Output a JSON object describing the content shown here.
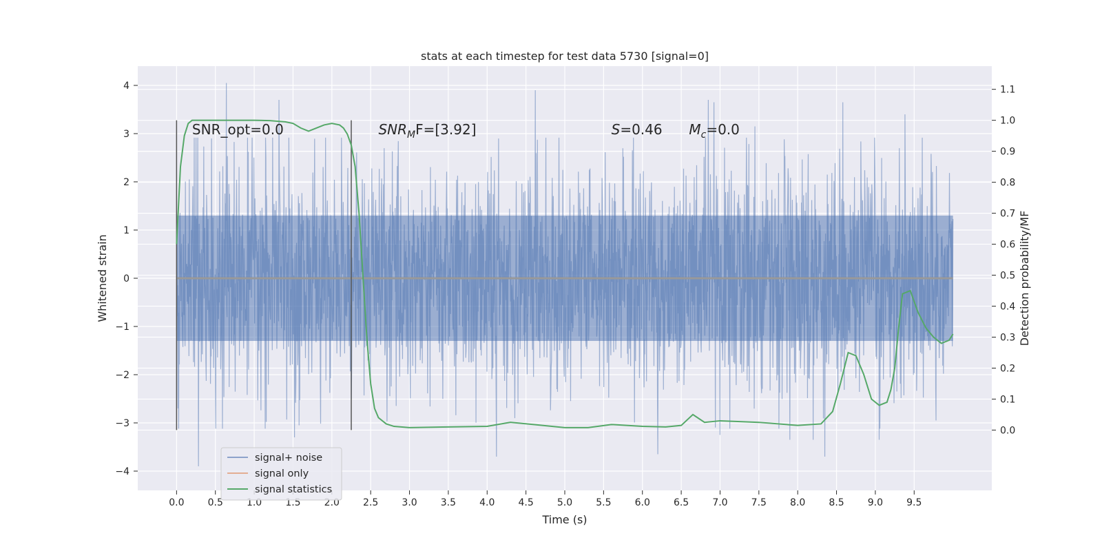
{
  "chart_data": {
    "type": "line",
    "title": "stats at each timestep for test data 5730 [signal=0]",
    "xlabel": "Time (s)",
    "ylabel_left": "Whitened strain",
    "ylabel_right": "Detection probability/MF",
    "xlim": [
      -0.5,
      10.5
    ],
    "ylim_left": [
      -4.4,
      4.4
    ],
    "ylim_right": [
      -0.1947,
      1.1749
    ],
    "x_ticks": [
      "0.0",
      "0.5",
      "1.0",
      "1.5",
      "2.0",
      "2.5",
      "3.0",
      "3.5",
      "4.0",
      "4.5",
      "5.0",
      "5.5",
      "6.0",
      "6.5",
      "7.0",
      "7.5",
      "8.0",
      "8.5",
      "9.0",
      "9.5"
    ],
    "y_left_ticks": [
      "4",
      "3",
      "2",
      "1",
      "0",
      "−1",
      "−2",
      "−3",
      "−4"
    ],
    "y_right_ticks": [
      "1.1",
      "1.0",
      "0.9",
      "0.8",
      "0.7",
      "0.6",
      "0.5",
      "0.4",
      "0.3",
      "0.2",
      "0.1",
      "0.0"
    ],
    "grid": true,
    "legend_position": "lower-left",
    "colors": {
      "background": "#eaeaf2",
      "grid": "#ffffff",
      "noise": "#4c72b0",
      "signal": "#dd8452",
      "statistics": "#55a868",
      "markers": "#555555"
    },
    "vertical_markers_x": [
      0.0,
      2.25
    ],
    "series": [
      {
        "name": "signal+ noise",
        "axis": "left",
        "style": "dense-noise",
        "x_range": [
          0.0,
          10.0
        ],
        "amplitude_band": [
          -1.3,
          1.3
        ],
        "y_range": [
          -3.9,
          4.05
        ],
        "peaks": [
          [
            0.28,
            -3.9
          ],
          [
            0.45,
            2.9
          ],
          [
            0.64,
            4.05
          ],
          [
            1.32,
            3.7
          ],
          [
            1.52,
            -3.3
          ],
          [
            1.58,
            -3.05
          ],
          [
            4.12,
            -3.7
          ],
          [
            4.62,
            3.9
          ],
          [
            6.2,
            -3.65
          ],
          [
            6.85,
            3.7
          ],
          [
            6.92,
            3.65
          ],
          [
            7.0,
            -3.25
          ],
          [
            7.45,
            3.15
          ],
          [
            7.9,
            -3.35
          ],
          [
            8.2,
            -3.35
          ],
          [
            8.35,
            -3.7
          ],
          [
            8.58,
            3.65
          ],
          [
            9.05,
            -3.35
          ],
          [
            9.38,
            3.4
          ],
          [
            9.78,
            -2.95
          ]
        ]
      },
      {
        "name": "signal only",
        "axis": "left",
        "x": [
          0.0,
          10.0
        ],
        "y": [
          0.0,
          0.0
        ]
      },
      {
        "name": "signal statistics",
        "axis": "right",
        "x": [
          0.0,
          0.05,
          0.1,
          0.15,
          0.2,
          0.3,
          0.5,
          1.0,
          1.2,
          1.4,
          1.5,
          1.6,
          1.7,
          1.8,
          1.9,
          2.0,
          2.1,
          2.15,
          2.2,
          2.25,
          2.3,
          2.35,
          2.4,
          2.45,
          2.5,
          2.55,
          2.6,
          2.7,
          2.8,
          3.0,
          3.5,
          4.0,
          4.3,
          4.6,
          5.0,
          5.3,
          5.6,
          6.0,
          6.3,
          6.5,
          6.65,
          6.8,
          7.0,
          7.2,
          7.5,
          8.0,
          8.3,
          8.45,
          8.55,
          8.65,
          8.75,
          8.85,
          8.95,
          9.05,
          9.15,
          9.2,
          9.25,
          9.3,
          9.35,
          9.45,
          9.55,
          9.65,
          9.75,
          9.85,
          9.95,
          10.0
        ],
        "y": [
          0.6,
          0.85,
          0.95,
          0.99,
          1.0,
          1.0,
          1.0,
          1.0,
          0.999,
          0.995,
          0.99,
          0.975,
          0.965,
          0.975,
          0.985,
          0.99,
          0.985,
          0.975,
          0.955,
          0.92,
          0.85,
          0.7,
          0.5,
          0.3,
          0.15,
          0.07,
          0.04,
          0.02,
          0.012,
          0.008,
          0.01,
          0.012,
          0.025,
          0.018,
          0.008,
          0.008,
          0.018,
          0.012,
          0.01,
          0.015,
          0.05,
          0.025,
          0.03,
          0.028,
          0.025,
          0.015,
          0.02,
          0.06,
          0.15,
          0.25,
          0.24,
          0.18,
          0.1,
          0.08,
          0.09,
          0.13,
          0.2,
          0.33,
          0.44,
          0.45,
          0.38,
          0.33,
          0.3,
          0.28,
          0.29,
          0.31
        ]
      }
    ],
    "annotations": [
      {
        "x": 0.2,
        "y_axis": "left",
        "y": 3.1,
        "text": "SNR_opt=0.0",
        "math": false
      },
      {
        "x": 2.6,
        "y_axis": "left",
        "y": 3.1,
        "math": true,
        "base": "SNR",
        "sub": "M",
        "rest": "F=[3.92]"
      },
      {
        "x": 5.6,
        "y_axis": "left",
        "y": 3.1,
        "math": true,
        "base": "S",
        "sub": "",
        "rest": "=0.46"
      },
      {
        "x": 6.6,
        "y_axis": "left",
        "y": 3.1,
        "math": true,
        "base": "M",
        "sub": "c",
        "rest": "=0.0"
      }
    ]
  }
}
